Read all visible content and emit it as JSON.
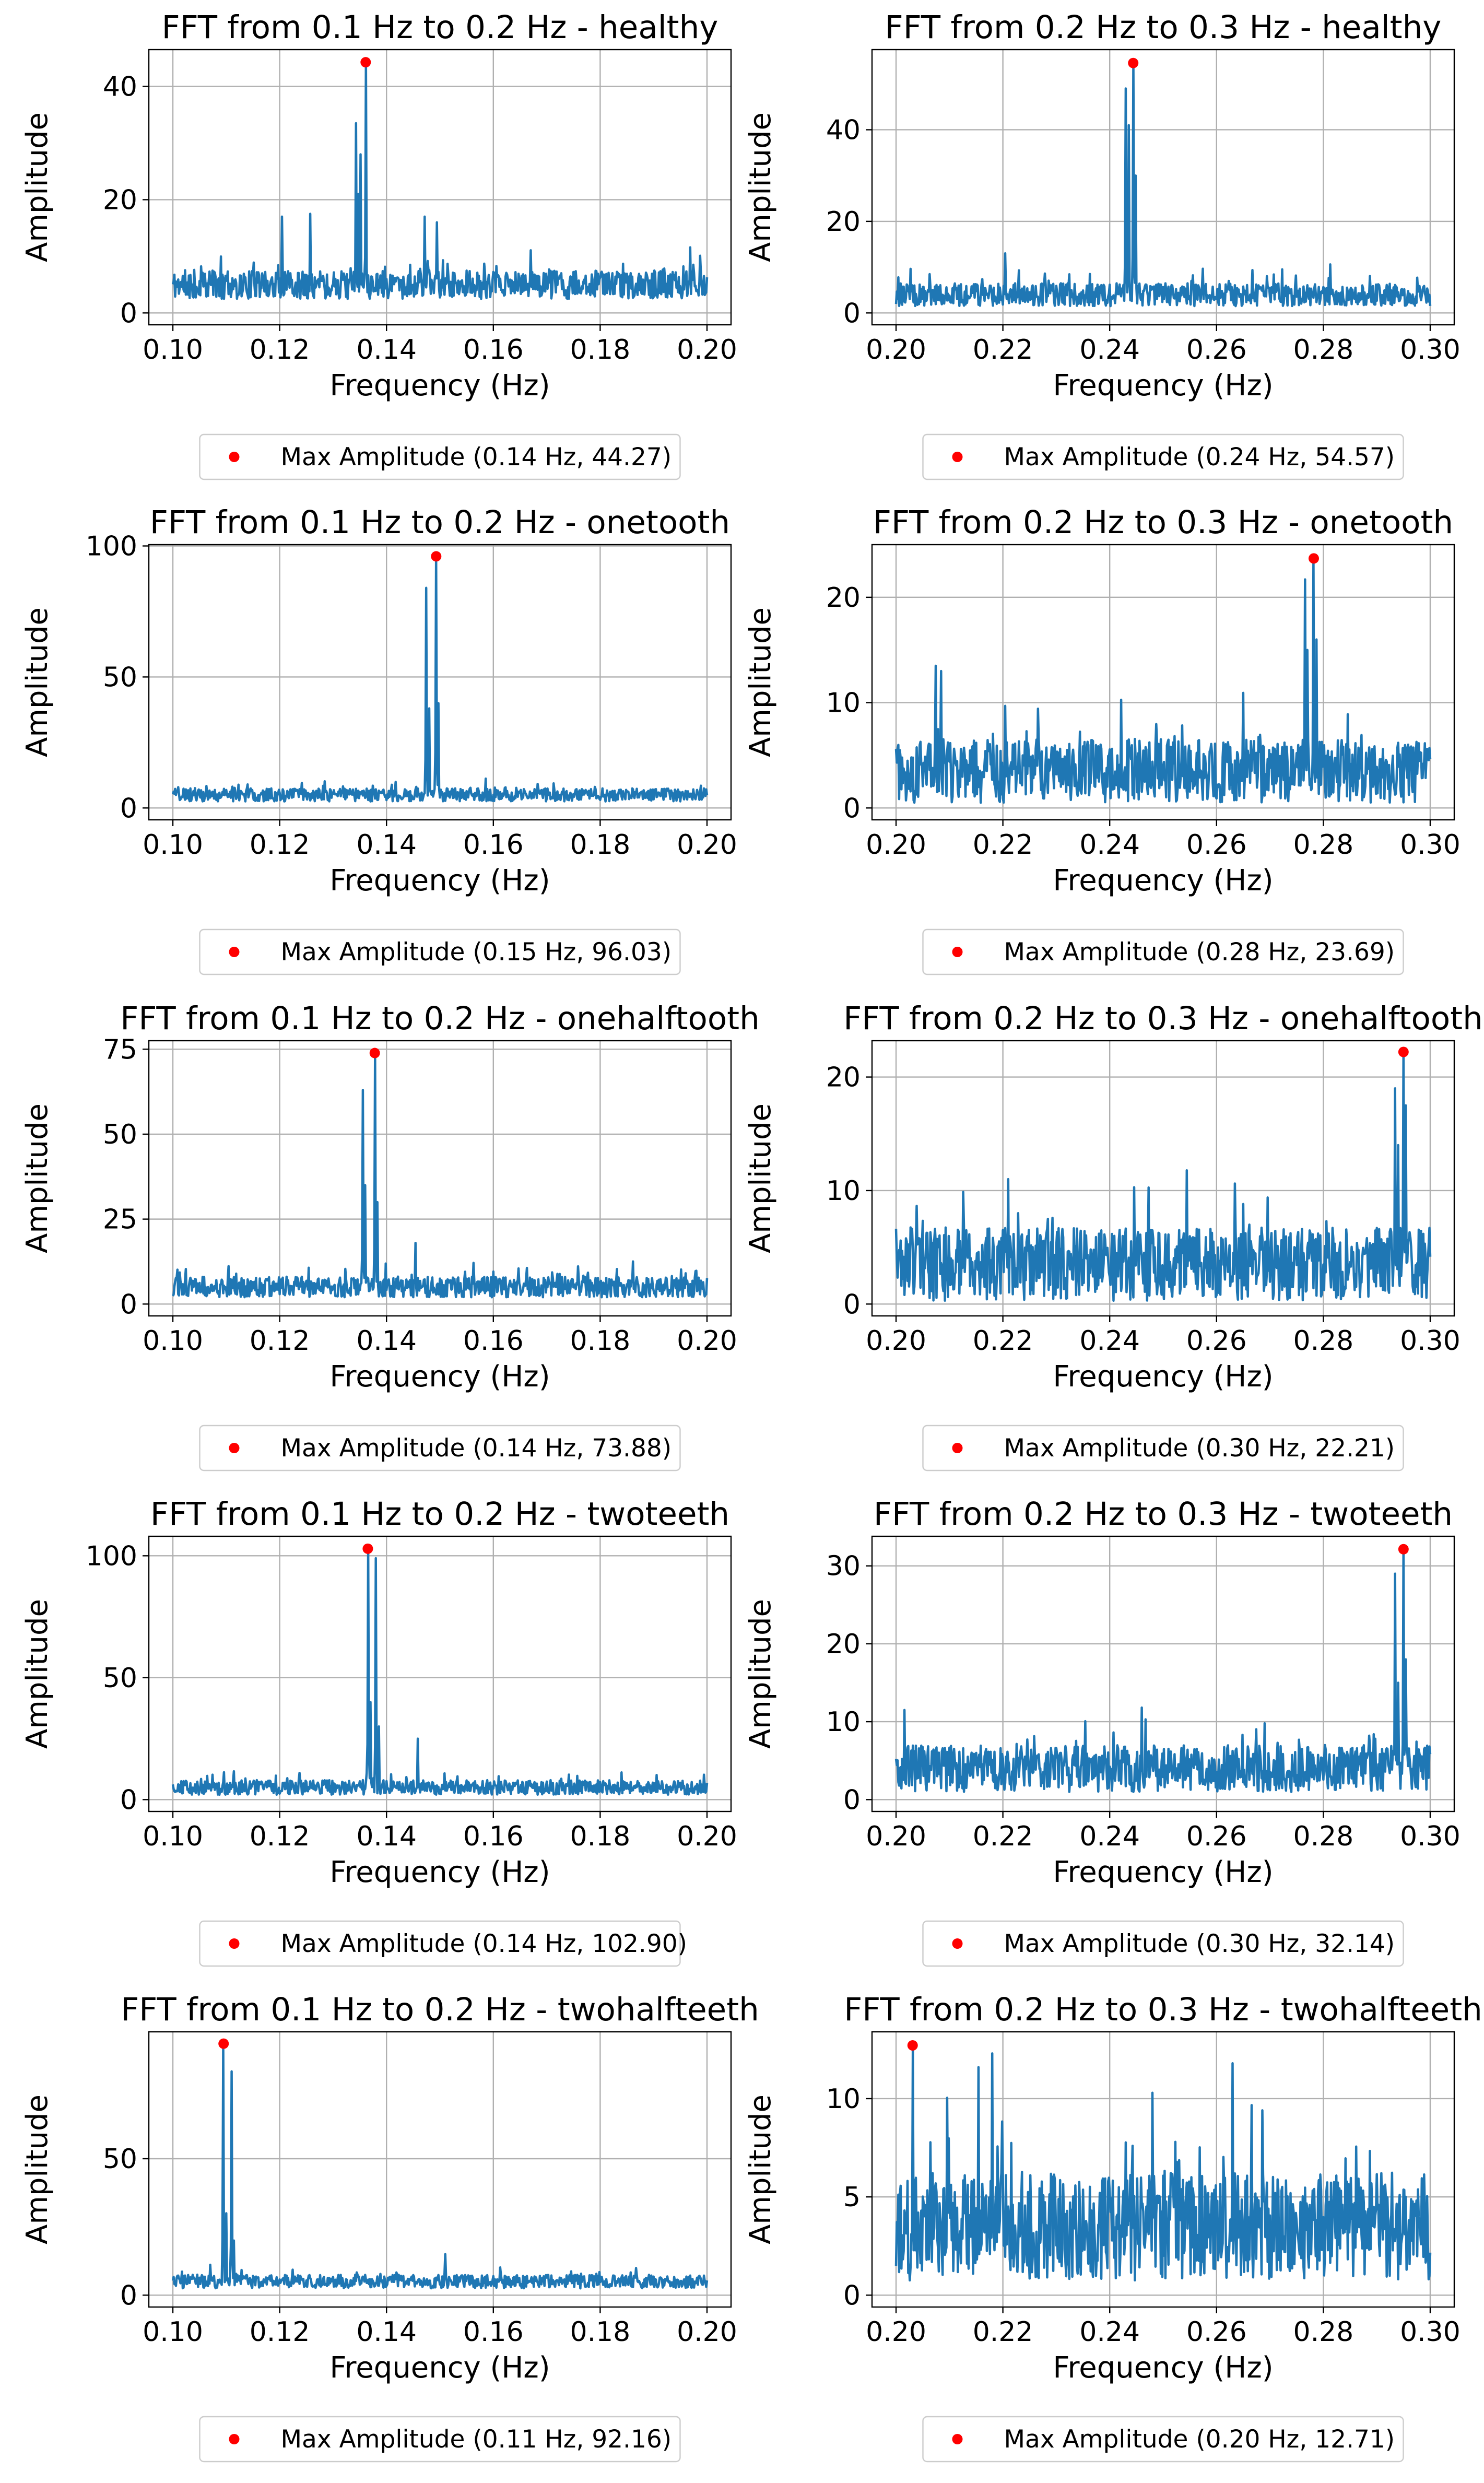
{
  "figure": {
    "xlabel": "Frequency (Hz)",
    "ylabel": "Amplitude",
    "legend_location": "below-axes",
    "series_color": "#1f77b4",
    "marker_color": "#ff0000"
  },
  "chart_data": [
    {
      "type": "line",
      "title": "FFT from 0.1 Hz to 0.2 Hz - healthy",
      "xlabel": "Frequency (Hz)",
      "ylabel": "Amplitude",
      "xlim": [
        0.1,
        0.2
      ],
      "ylim": [
        0,
        46.5
      ],
      "xticks": [
        "0.10",
        "0.12",
        "0.14",
        "0.16",
        "0.18",
        "0.20"
      ],
      "yticks": [
        0,
        20,
        40
      ],
      "baseline": 5,
      "noise": 5,
      "seed": 11,
      "peaks": [
        [
          0.1205,
          17
        ],
        [
          0.1257,
          17.5
        ],
        [
          0.1343,
          33.5
        ],
        [
          0.1347,
          21
        ],
        [
          0.1352,
          28
        ],
        [
          0.1361,
          44.27
        ],
        [
          0.1472,
          17
        ],
        [
          0.1495,
          16
        ]
      ],
      "max_point": {
        "x": 0.1361,
        "y": 44.27
      },
      "legend_label": "Max Amplitude (0.14 Hz, 44.27)"
    },
    {
      "type": "line",
      "title": "FFT from 0.2 Hz to 0.3 Hz - healthy",
      "xlabel": "Frequency (Hz)",
      "ylabel": "Amplitude",
      "xlim": [
        0.2,
        0.3
      ],
      "ylim": [
        0,
        57.5
      ],
      "xticks": [
        "0.20",
        "0.22",
        "0.24",
        "0.26",
        "0.28",
        "0.30"
      ],
      "yticks": [
        0,
        20,
        40
      ],
      "baseline": 4,
      "noise": 5,
      "seed": 23,
      "peaks": [
        [
          0.2205,
          13
        ],
        [
          0.243,
          49
        ],
        [
          0.2436,
          41
        ],
        [
          0.2444,
          54.57
        ],
        [
          0.2449,
          30
        ]
      ],
      "max_point": {
        "x": 0.2444,
        "y": 54.57
      },
      "legend_label": "Max Amplitude (0.24 Hz, 54.57)"
    },
    {
      "type": "line",
      "title": "FFT from 0.1 Hz to 0.2 Hz - onetooth",
      "xlabel": "Frequency (Hz)",
      "ylabel": "Amplitude",
      "xlim": [
        0.1,
        0.2
      ],
      "ylim": [
        0,
        100.5
      ],
      "xticks": [
        "0.10",
        "0.12",
        "0.14",
        "0.16",
        "0.18",
        "0.20"
      ],
      "yticks": [
        0,
        50,
        100
      ],
      "baseline": 5,
      "noise": 5,
      "seed": 37,
      "peaks": [
        [
          0.1475,
          84
        ],
        [
          0.148,
          38
        ],
        [
          0.1493,
          96.03
        ],
        [
          0.1497,
          40
        ]
      ],
      "max_point": {
        "x": 0.1493,
        "y": 96.03
      },
      "legend_label": "Max Amplitude (0.15 Hz, 96.03)"
    },
    {
      "type": "line",
      "title": "FFT from 0.2 Hz to 0.3 Hz - onetooth",
      "xlabel": "Frequency (Hz)",
      "ylabel": "Amplitude",
      "xlim": [
        0.2,
        0.3
      ],
      "ylim": [
        0,
        25
      ],
      "xticks": [
        "0.20",
        "0.22",
        "0.24",
        "0.26",
        "0.28",
        "0.30"
      ],
      "yticks": [
        0,
        10,
        20
      ],
      "baseline": 3.5,
      "noise": 6,
      "seed": 41,
      "peaks": [
        [
          0.2075,
          13.5
        ],
        [
          0.2085,
          13
        ],
        [
          0.2765,
          21.7
        ],
        [
          0.277,
          15
        ],
        [
          0.2782,
          23.69
        ],
        [
          0.2787,
          16
        ]
      ],
      "max_point": {
        "x": 0.2782,
        "y": 23.69
      },
      "legend_label": "Max Amplitude (0.28 Hz, 23.69)"
    },
    {
      "type": "line",
      "title": "FFT from 0.1 Hz to 0.2 Hz - onehalftooth",
      "xlabel": "Frequency (Hz)",
      "ylabel": "Amplitude",
      "xlim": [
        0.1,
        0.2
      ],
      "ylim": [
        0,
        77.5
      ],
      "xticks": [
        "0.10",
        "0.12",
        "0.14",
        "0.16",
        "0.18",
        "0.20"
      ],
      "yticks": [
        0,
        25,
        50,
        75
      ],
      "baseline": 5,
      "noise": 6,
      "seed": 53,
      "peaks": [
        [
          0.1355,
          63
        ],
        [
          0.136,
          35
        ],
        [
          0.1378,
          73.88
        ],
        [
          0.1383,
          30
        ],
        [
          0.1455,
          18
        ]
      ],
      "max_point": {
        "x": 0.1378,
        "y": 73.88
      },
      "legend_label": "Max Amplitude (0.14 Hz, 73.88)"
    },
    {
      "type": "line",
      "title": "FFT from 0.2 Hz to 0.3 Hz - onehalftooth",
      "xlabel": "Frequency (Hz)",
      "ylabel": "Amplitude",
      "xlim": [
        0.2,
        0.3
      ],
      "ylim": [
        0,
        23.2
      ],
      "xticks": [
        "0.20",
        "0.22",
        "0.24",
        "0.26",
        "0.28",
        "0.30"
      ],
      "yticks": [
        0,
        10,
        20
      ],
      "baseline": 3.5,
      "noise": 6.5,
      "seed": 67,
      "peaks": [
        [
          0.2935,
          19
        ],
        [
          0.294,
          14
        ],
        [
          0.295,
          22.21
        ],
        [
          0.2955,
          17.5
        ]
      ],
      "max_point": {
        "x": 0.295,
        "y": 22.21
      },
      "legend_label": "Max Amplitude (0.30 Hz, 22.21)"
    },
    {
      "type": "line",
      "title": "FFT from 0.1 Hz to 0.2 Hz - twoteeth",
      "xlabel": "Frequency (Hz)",
      "ylabel": "Amplitude",
      "xlim": [
        0.1,
        0.2
      ],
      "ylim": [
        0,
        108
      ],
      "xticks": [
        "0.10",
        "0.12",
        "0.14",
        "0.16",
        "0.18",
        "0.20"
      ],
      "yticks": [
        0,
        50,
        100
      ],
      "baseline": 5,
      "noise": 6,
      "seed": 79,
      "peaks": [
        [
          0.1365,
          102.9
        ],
        [
          0.137,
          40
        ],
        [
          0.138,
          99
        ],
        [
          0.1385,
          30
        ],
        [
          0.1458,
          25
        ]
      ],
      "max_point": {
        "x": 0.1365,
        "y": 102.9
      },
      "legend_label": "Max Amplitude (0.14 Hz, 102.90)"
    },
    {
      "type": "line",
      "title": "FFT from 0.2 Hz to 0.3 Hz - twoteeth",
      "xlabel": "Frequency (Hz)",
      "ylabel": "Amplitude",
      "xlim": [
        0.2,
        0.3
      ],
      "ylim": [
        0,
        33.8
      ],
      "xticks": [
        "0.20",
        "0.22",
        "0.24",
        "0.26",
        "0.28",
        "0.30"
      ],
      "yticks": [
        0,
        10,
        20,
        30
      ],
      "baseline": 4,
      "noise": 6,
      "seed": 83,
      "peaks": [
        [
          0.2015,
          11.5
        ],
        [
          0.2935,
          29
        ],
        [
          0.294,
          15
        ],
        [
          0.295,
          32.14
        ],
        [
          0.2955,
          18
        ]
      ],
      "max_point": {
        "x": 0.295,
        "y": 32.14
      },
      "legend_label": "Max Amplitude (0.30 Hz, 32.14)"
    },
    {
      "type": "line",
      "title": "FFT from 0.1 Hz to 0.2 Hz - twohalfteeth",
      "xlabel": "Frequency (Hz)",
      "ylabel": "Amplitude",
      "xlim": [
        0.1,
        0.2
      ],
      "ylim": [
        0,
        96.5
      ],
      "xticks": [
        "0.10",
        "0.12",
        "0.14",
        "0.16",
        "0.18",
        "0.20"
      ],
      "yticks": [
        0,
        50
      ],
      "baseline": 5,
      "noise": 5,
      "seed": 97,
      "peaks": [
        [
          0.1095,
          92.16
        ],
        [
          0.11,
          30
        ],
        [
          0.111,
          82
        ],
        [
          0.1115,
          20
        ],
        [
          0.151,
          15
        ]
      ],
      "max_point": {
        "x": 0.1095,
        "y": 92.16
      },
      "legend_label": "Max Amplitude (0.11 Hz, 92.16)"
    },
    {
      "type": "line",
      "title": "FFT from 0.2 Hz to 0.3 Hz - twohalfteeth",
      "xlabel": "Frequency (Hz)",
      "ylabel": "Amplitude",
      "xlim": [
        0.2,
        0.3
      ],
      "ylim": [
        0,
        13.4
      ],
      "xticks": [
        "0.20",
        "0.22",
        "0.24",
        "0.26",
        "0.28",
        "0.30"
      ],
      "yticks": [
        0,
        5,
        10
      ],
      "baseline": 3.5,
      "noise": 5.5,
      "seed": 101,
      "peaks": [
        [
          0.2031,
          12.71
        ],
        [
          0.2155,
          11.6
        ],
        [
          0.218,
          12.3
        ],
        [
          0.263,
          11.8
        ],
        [
          0.248,
          10.3
        ]
      ],
      "max_point": {
        "x": 0.2031,
        "y": 12.71
      },
      "legend_label": "Max Amplitude (0.20 Hz, 12.71)"
    }
  ]
}
